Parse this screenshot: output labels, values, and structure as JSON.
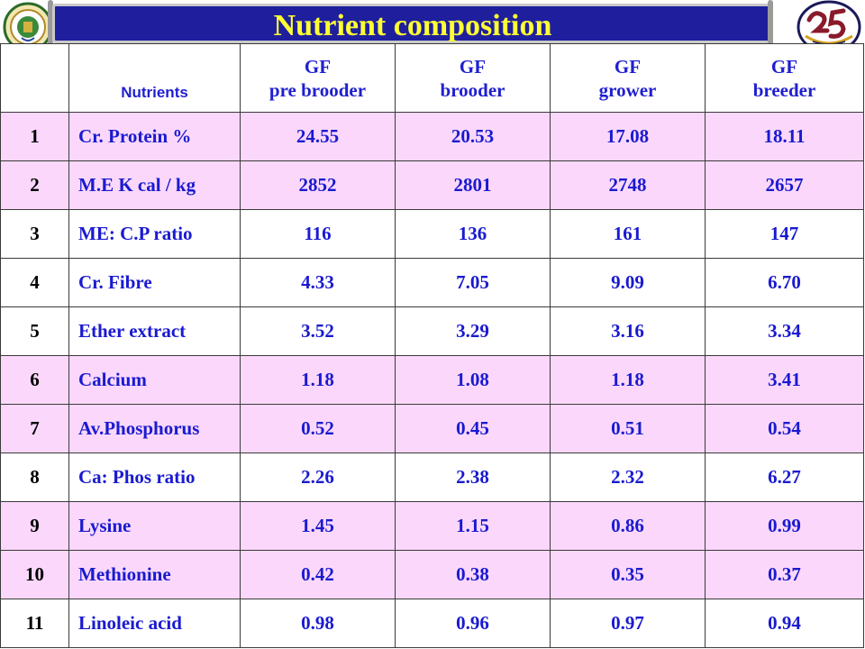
{
  "title": "Nutrient  composition",
  "logos": {
    "left": "university-seal-icon",
    "right": "25-anniversary-emblem-icon"
  },
  "table": {
    "header": {
      "serial": "",
      "nutrients": "Nutrients",
      "columns": [
        {
          "line1": "GF",
          "line2": "pre brooder"
        },
        {
          "line1": "GF",
          "line2": "brooder"
        },
        {
          "line1": "GF",
          "line2": "grower"
        },
        {
          "line1": "GF",
          "line2": "breeder"
        }
      ]
    },
    "rows": [
      {
        "sn": "1",
        "name": "Cr. Protein %",
        "v": [
          "24.55",
          "20.53",
          "17.08",
          "18.11"
        ],
        "shade": "pink"
      },
      {
        "sn": "2",
        "name": "M.E K cal / kg",
        "v": [
          "2852",
          "2801",
          "2748",
          "2657"
        ],
        "shade": "pink"
      },
      {
        "sn": "3",
        "name": "ME: C.P ratio",
        "v": [
          "116",
          "136",
          "161",
          "147"
        ],
        "shade": "white"
      },
      {
        "sn": "4",
        "name": "Cr. Fibre",
        "v": [
          "4.33",
          "7.05",
          "9.09",
          "6.70"
        ],
        "shade": "white"
      },
      {
        "sn": "5",
        "name": "Ether extract",
        "v": [
          "3.52",
          "3.29",
          "3.16",
          "3.34"
        ],
        "shade": "white"
      },
      {
        "sn": "6",
        "name": "Calcium",
        "v": [
          "1.18",
          "1.08",
          "1.18",
          "3.41"
        ],
        "shade": "pink"
      },
      {
        "sn": "7",
        "name": "Av.Phosphorus",
        "v": [
          "0.52",
          "0.45",
          "0.51",
          "0.54"
        ],
        "shade": "pink"
      },
      {
        "sn": "8",
        "name": "Ca: Phos ratio",
        "v": [
          "2.26",
          "2.38",
          "2.32",
          "6.27"
        ],
        "shade": "white"
      },
      {
        "sn": "9",
        "name": "Lysine",
        "v": [
          "1.45",
          "1.15",
          "0.86",
          "0.99"
        ],
        "shade": "pink"
      },
      {
        "sn": "10",
        "name": "Methionine",
        "v": [
          "0.42",
          "0.38",
          "0.35",
          "0.37"
        ],
        "shade": "pink"
      },
      {
        "sn": "11",
        "name": "Linoleic acid",
        "v": [
          "0.98",
          "0.96",
          "0.97",
          "0.94"
        ],
        "shade": "white"
      }
    ]
  }
}
